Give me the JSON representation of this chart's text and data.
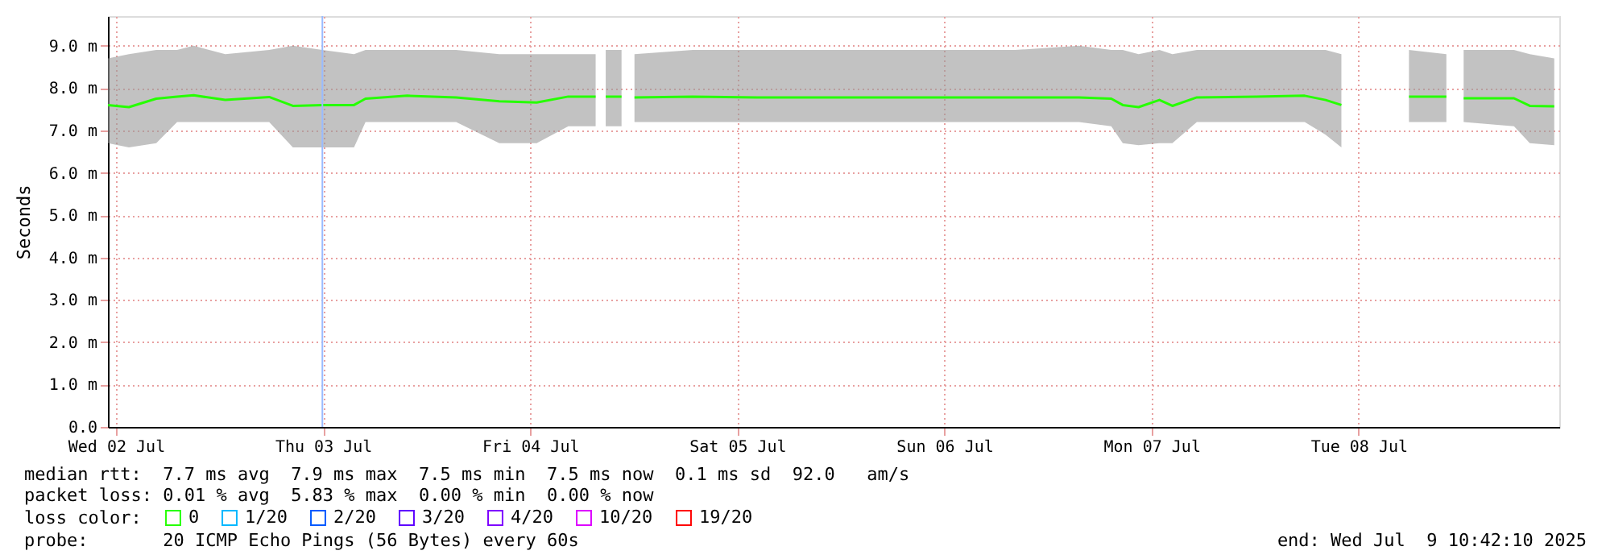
{
  "chart_data": {
    "type": "line",
    "ylabel": "Seconds",
    "legend_title": "loss color:",
    "legend": "bottom left",
    "marker": "none",
    "line_style": "solid",
    "grid": true,
    "x": [
      "2025-07-01T23:04",
      "2025-07-02T01:30",
      "2025-07-02T04:40",
      "2025-07-02T07:05",
      "2025-07-02T09:00",
      "2025-07-02T12:40",
      "2025-07-02T17:45",
      "2025-07-02T20:30",
      "2025-07-02T23:55",
      "2025-07-03T03:35",
      "2025-07-03T04:55",
      "2025-07-03T09:45",
      "2025-07-03T15:25",
      "2025-07-03T20:25",
      "2025-07-04T00:45",
      "2025-07-04T04:25",
      "2025-07-04T07:35",
      "2025-07-04T07:50",
      "2025-07-04T08:45",
      "2025-07-04T10:35",
      "2025-07-04T11:10",
      "2025-07-04T12:05",
      "2025-07-04T18:50",
      "2025-07-05T02:15",
      "2025-07-05T09:45",
      "2025-07-05T17:15",
      "2025-07-06T00:40",
      "2025-07-06T08:10",
      "2025-07-06T15:35",
      "2025-07-06T19:20",
      "2025-07-06T20:40",
      "2025-07-06T22:30",
      "2025-07-07T00:55",
      "2025-07-07T02:25",
      "2025-07-07T05:15",
      "2025-07-07T12:10",
      "2025-07-07T17:45",
      "2025-07-07T20:10",
      "2025-07-07T22:00",
      "2025-07-07T23:20",
      "2025-07-08T05:50",
      "2025-07-08T10:10",
      "2025-07-08T11:05",
      "2025-07-08T12:10",
      "2025-07-08T18:00",
      "2025-07-08T19:50",
      "2025-07-08T22:40"
    ],
    "series": [
      {
        "name": "0",
        "color": "#26ff00",
        "values": [
          7.6,
          7.55,
          7.75,
          7.8,
          7.83,
          7.72,
          7.79,
          7.58,
          7.6,
          7.6,
          7.75,
          7.82,
          7.78,
          7.69,
          7.66,
          7.8,
          7.8,
          null,
          7.8,
          7.8,
          null,
          7.78,
          7.8,
          7.78,
          7.78,
          7.78,
          7.78,
          7.78,
          7.78,
          7.75,
          7.6,
          7.55,
          7.72,
          7.58,
          7.78,
          7.8,
          7.82,
          7.72,
          7.6,
          null,
          7.8,
          7.8,
          null,
          7.76,
          7.76,
          7.58,
          7.57
        ],
        "lower": [
          6.7,
          6.6,
          6.7,
          7.2,
          7.2,
          7.2,
          7.2,
          6.6,
          6.6,
          6.6,
          7.2,
          7.2,
          7.2,
          6.7,
          6.7,
          7.1,
          7.1,
          null,
          7.1,
          7.1,
          null,
          7.2,
          7.2,
          7.2,
          7.2,
          7.2,
          7.2,
          7.2,
          7.2,
          7.1,
          6.7,
          6.65,
          6.7,
          6.7,
          7.2,
          7.2,
          7.2,
          6.9,
          6.6,
          null,
          7.2,
          7.2,
          null,
          7.2,
          7.1,
          6.7,
          6.65
        ],
        "upper": [
          8.7,
          8.8,
          8.9,
          8.9,
          9.0,
          8.8,
          8.9,
          9.0,
          8.9,
          8.8,
          8.9,
          8.9,
          8.9,
          8.8,
          8.8,
          8.8,
          8.8,
          null,
          8.9,
          8.9,
          null,
          8.8,
          8.9,
          8.9,
          8.9,
          8.9,
          8.9,
          8.9,
          9.0,
          8.9,
          8.9,
          8.8,
          8.9,
          8.8,
          8.9,
          8.9,
          8.9,
          8.9,
          8.8,
          null,
          8.9,
          8.8,
          null,
          8.9,
          8.9,
          8.8,
          8.7
        ]
      },
      {
        "name": "1/20",
        "color": "#00b8ff",
        "values": [
          null,
          null,
          null,
          null,
          null,
          null,
          null,
          null,
          null,
          null,
          null,
          null,
          null,
          null,
          null,
          null,
          null,
          null,
          null,
          null,
          null,
          null,
          null,
          null,
          null,
          null,
          null,
          null,
          null,
          null,
          null,
          null,
          null,
          null,
          null,
          null,
          null,
          null,
          null,
          null,
          null,
          null,
          null,
          null,
          null,
          null,
          null
        ]
      },
      {
        "name": "2/20",
        "color": "#0059ff",
        "values": [
          null,
          null,
          null,
          null,
          null,
          null,
          null,
          null,
          null,
          null,
          null,
          null,
          null,
          null,
          null,
          null,
          null,
          null,
          null,
          null,
          null,
          null,
          null,
          null,
          null,
          null,
          null,
          null,
          null,
          null,
          null,
          null,
          null,
          null,
          null,
          null,
          null,
          null,
          null,
          null,
          null,
          null,
          null,
          null,
          null,
          null,
          null
        ]
      },
      {
        "name": "3/20",
        "color": "#5e00ff",
        "values": [
          null,
          null,
          null,
          null,
          null,
          null,
          null,
          null,
          null,
          null,
          null,
          null,
          null,
          null,
          null,
          null,
          null,
          null,
          null,
          null,
          null,
          null,
          null,
          null,
          null,
          null,
          null,
          null,
          null,
          null,
          null,
          null,
          null,
          null,
          null,
          null,
          null,
          null,
          null,
          null,
          null,
          null,
          null,
          null,
          null,
          null,
          null
        ]
      },
      {
        "name": "4/20",
        "color": "#7e00ff",
        "values": [
          null,
          null,
          null,
          null,
          null,
          null,
          null,
          null,
          null,
          null,
          null,
          null,
          null,
          null,
          null,
          null,
          null,
          null,
          null,
          null,
          null,
          null,
          null,
          null,
          null,
          null,
          null,
          null,
          null,
          null,
          null,
          null,
          null,
          null,
          null,
          null,
          null,
          null,
          null,
          null,
          null,
          null,
          null,
          null,
          null,
          null,
          null
        ]
      },
      {
        "name": "10/20",
        "color": "#dd00ff",
        "values": [
          null,
          null,
          null,
          null,
          null,
          null,
          null,
          null,
          null,
          null,
          null,
          null,
          null,
          null,
          null,
          null,
          null,
          null,
          null,
          null,
          null,
          null,
          null,
          null,
          null,
          null,
          null,
          null,
          null,
          null,
          null,
          null,
          null,
          null,
          null,
          null,
          null,
          null,
          null,
          null,
          null,
          null,
          null,
          null,
          null,
          null,
          null
        ]
      },
      {
        "name": "19/20",
        "color": "#ff0000",
        "values": [
          null,
          null,
          null,
          null,
          null,
          null,
          null,
          null,
          null,
          null,
          null,
          null,
          null,
          null,
          null,
          null,
          null,
          null,
          null,
          null,
          null,
          null,
          null,
          null,
          null,
          null,
          null,
          null,
          null,
          null,
          null,
          null,
          null,
          null,
          null,
          null,
          null,
          null,
          null,
          null,
          null,
          null,
          null,
          null,
          null,
          null,
          null
        ]
      }
    ],
    "xlim": [
      "2025-07-01T23:04",
      "2025-07-08T23:15"
    ],
    "xticks": [
      {
        "value": "2025-07-02",
        "label": "Wed 02 Jul"
      },
      {
        "value": "2025-07-03",
        "label": "Thu 03 Jul"
      },
      {
        "value": "2025-07-04",
        "label": "Fri 04 Jul"
      },
      {
        "value": "2025-07-05",
        "label": "Sat 05 Jul"
      },
      {
        "value": "2025-07-06",
        "label": "Sun 06 Jul"
      },
      {
        "value": "2025-07-07",
        "label": "Mon 07 Jul"
      },
      {
        "value": "2025-07-08",
        "label": "Tue 08 Jul"
      }
    ],
    "ylim": [
      0,
      9.7
    ],
    "yticks": [
      {
        "value": 0,
        "label": "0.0"
      },
      {
        "value": 1,
        "label": "1.0 m"
      },
      {
        "value": 2,
        "label": "2.0 m"
      },
      {
        "value": 3,
        "label": "3.0 m"
      },
      {
        "value": 4,
        "label": "4.0 m"
      },
      {
        "value": 5,
        "label": "5.0 m"
      },
      {
        "value": 6,
        "label": "6.0 m"
      },
      {
        "value": 7,
        "label": "7.0 m"
      },
      {
        "value": 8,
        "label": "8.0 m"
      },
      {
        "value": 9,
        "label": "9.0 m"
      }
    ],
    "ref_lines": [
      {
        "axis": "x",
        "value": "2025-07-02T23:55",
        "color": "#99bbff"
      }
    ],
    "annotations": [
      "median rtt:  7.7 ms avg  7.9 ms max  7.5 ms min  7.5 ms now  0.1 ms sd  92.0   am/s",
      "packet loss: 0.01 % avg  5.83 % max  0.00 % min  0.00 % now",
      "probe:       20 ICMP Echo Pings (56 Bytes) every 60s",
      "end: Wed Jul  9 10:42:10 2025"
    ]
  }
}
